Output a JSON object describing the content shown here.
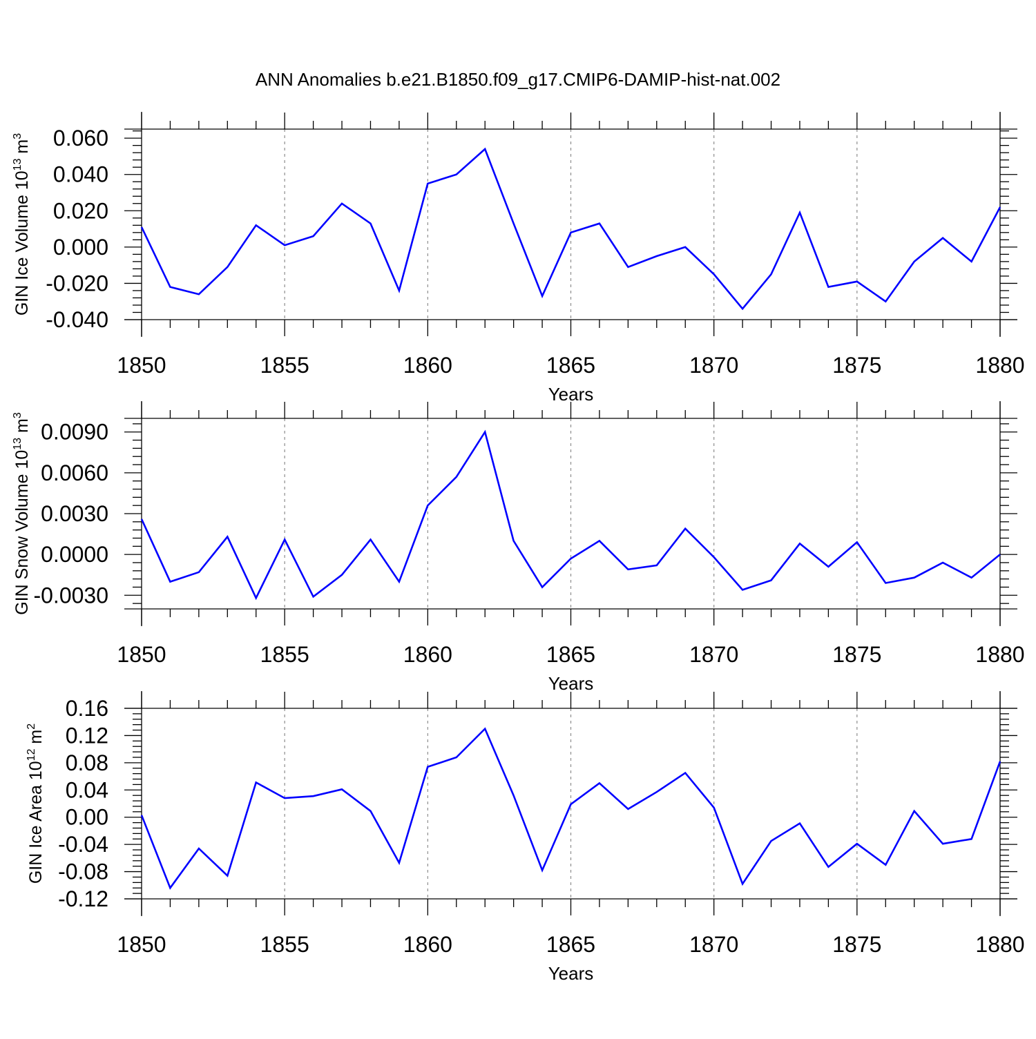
{
  "figure": {
    "title": "ANN Anomalies b.e21.B1850.f09_g17.CMIP6-DAMIP-hist-nat.002",
    "line_color": "#0000ff",
    "axis_color": "#000000",
    "grid_color": "#8c8c8c"
  },
  "chart_data": [
    {
      "type": "line",
      "title": "",
      "xlabel": "Years",
      "ylabel_main": "GIN Ice Volume 10",
      "ylabel_exp": "13",
      "ylabel_unit": " m",
      "ylabel_unit_exp": "3",
      "xlim": [
        1850,
        1880
      ],
      "ylim": [
        -0.04,
        0.065
      ],
      "xticks": [
        1850,
        1855,
        1860,
        1865,
        1870,
        1875,
        1880
      ],
      "yticks": [
        -0.04,
        -0.02,
        0.0,
        0.02,
        0.04,
        0.06
      ],
      "ytick_labels": [
        "-0.040",
        "-0.020",
        "0.000",
        "0.020",
        "0.040",
        "0.060"
      ],
      "grid": "vertical-dashed-at-major-x",
      "x": [
        1850,
        1851,
        1852,
        1853,
        1854,
        1855,
        1856,
        1857,
        1858,
        1859,
        1860,
        1861,
        1862,
        1863,
        1864,
        1865,
        1866,
        1867,
        1868,
        1869,
        1870,
        1871,
        1872,
        1873,
        1874,
        1875,
        1876,
        1877,
        1878,
        1879,
        1880
      ],
      "series": [
        {
          "values": [
            0.011,
            -0.022,
            -0.026,
            -0.011,
            0.012,
            0.001,
            0.006,
            0.024,
            0.013,
            -0.024,
            0.035,
            0.04,
            0.054,
            0.013,
            -0.027,
            0.008,
            0.013,
            -0.011,
            -0.005,
            0.0,
            -0.015,
            -0.034,
            -0.015,
            0.019,
            -0.022,
            -0.019,
            -0.03,
            -0.008,
            0.005,
            -0.008,
            0.022
          ]
        }
      ]
    },
    {
      "type": "line",
      "title": "",
      "xlabel": "Years",
      "ylabel_main": "GIN Snow Volume 10",
      "ylabel_exp": "13",
      "ylabel_unit": " m",
      "ylabel_unit_exp": "3",
      "xlim": [
        1850,
        1880
      ],
      "ylim": [
        -0.004,
        0.01
      ],
      "xticks": [
        1850,
        1855,
        1860,
        1865,
        1870,
        1875,
        1880
      ],
      "yticks": [
        -0.003,
        0.0,
        0.003,
        0.006,
        0.009
      ],
      "ytick_labels": [
        "-0.0030",
        "0.0000",
        "0.0030",
        "0.0060",
        "0.0090"
      ],
      "grid": "vertical-dashed-at-major-x",
      "x": [
        1850,
        1851,
        1852,
        1853,
        1854,
        1855,
        1856,
        1857,
        1858,
        1859,
        1860,
        1861,
        1862,
        1863,
        1864,
        1865,
        1866,
        1867,
        1868,
        1869,
        1870,
        1871,
        1872,
        1873,
        1874,
        1875,
        1876,
        1877,
        1878,
        1879,
        1880
      ],
      "series": [
        {
          "values": [
            0.0026,
            -0.002,
            -0.0013,
            0.0013,
            -0.0032,
            0.0011,
            -0.0031,
            -0.0015,
            0.0011,
            -0.002,
            0.0036,
            0.0057,
            0.009,
            0.001,
            -0.0024,
            -0.0003,
            0.001,
            -0.0011,
            -0.0008,
            0.0019,
            -0.0002,
            -0.0026,
            -0.0019,
            0.0008,
            -0.0009,
            0.0009,
            -0.0021,
            -0.0017,
            -0.0006,
            -0.0017,
            0.0
          ]
        }
      ]
    },
    {
      "type": "line",
      "title": "",
      "xlabel": "Years",
      "ylabel_main": "GIN Ice Area 10",
      "ylabel_exp": "12",
      "ylabel_unit": " m",
      "ylabel_unit_exp": "2",
      "xlim": [
        1850,
        1880
      ],
      "ylim": [
        -0.12,
        0.16
      ],
      "xticks": [
        1850,
        1855,
        1860,
        1865,
        1870,
        1875,
        1880
      ],
      "yticks": [
        -0.12,
        -0.08,
        -0.04,
        0.0,
        0.04,
        0.08,
        0.12,
        0.16
      ],
      "ytick_labels": [
        "-0.12",
        "-0.08",
        "-0.04",
        "0.00",
        "0.04",
        "0.08",
        "0.12",
        "0.16"
      ],
      "grid": "vertical-dashed-at-major-x",
      "x": [
        1850,
        1851,
        1852,
        1853,
        1854,
        1855,
        1856,
        1857,
        1858,
        1859,
        1860,
        1861,
        1862,
        1863,
        1864,
        1865,
        1866,
        1867,
        1868,
        1869,
        1870,
        1871,
        1872,
        1873,
        1874,
        1875,
        1876,
        1877,
        1878,
        1879,
        1880
      ],
      "series": [
        {
          "values": [
            0.003,
            -0.104,
            -0.046,
            -0.086,
            0.051,
            0.028,
            0.031,
            0.041,
            0.009,
            -0.067,
            0.074,
            0.088,
            0.13,
            0.032,
            -0.078,
            0.019,
            0.05,
            0.012,
            0.037,
            0.065,
            0.014,
            -0.098,
            -0.035,
            -0.009,
            -0.073,
            -0.039,
            -0.07,
            0.009,
            -0.039,
            -0.032,
            0.082
          ]
        }
      ]
    }
  ]
}
